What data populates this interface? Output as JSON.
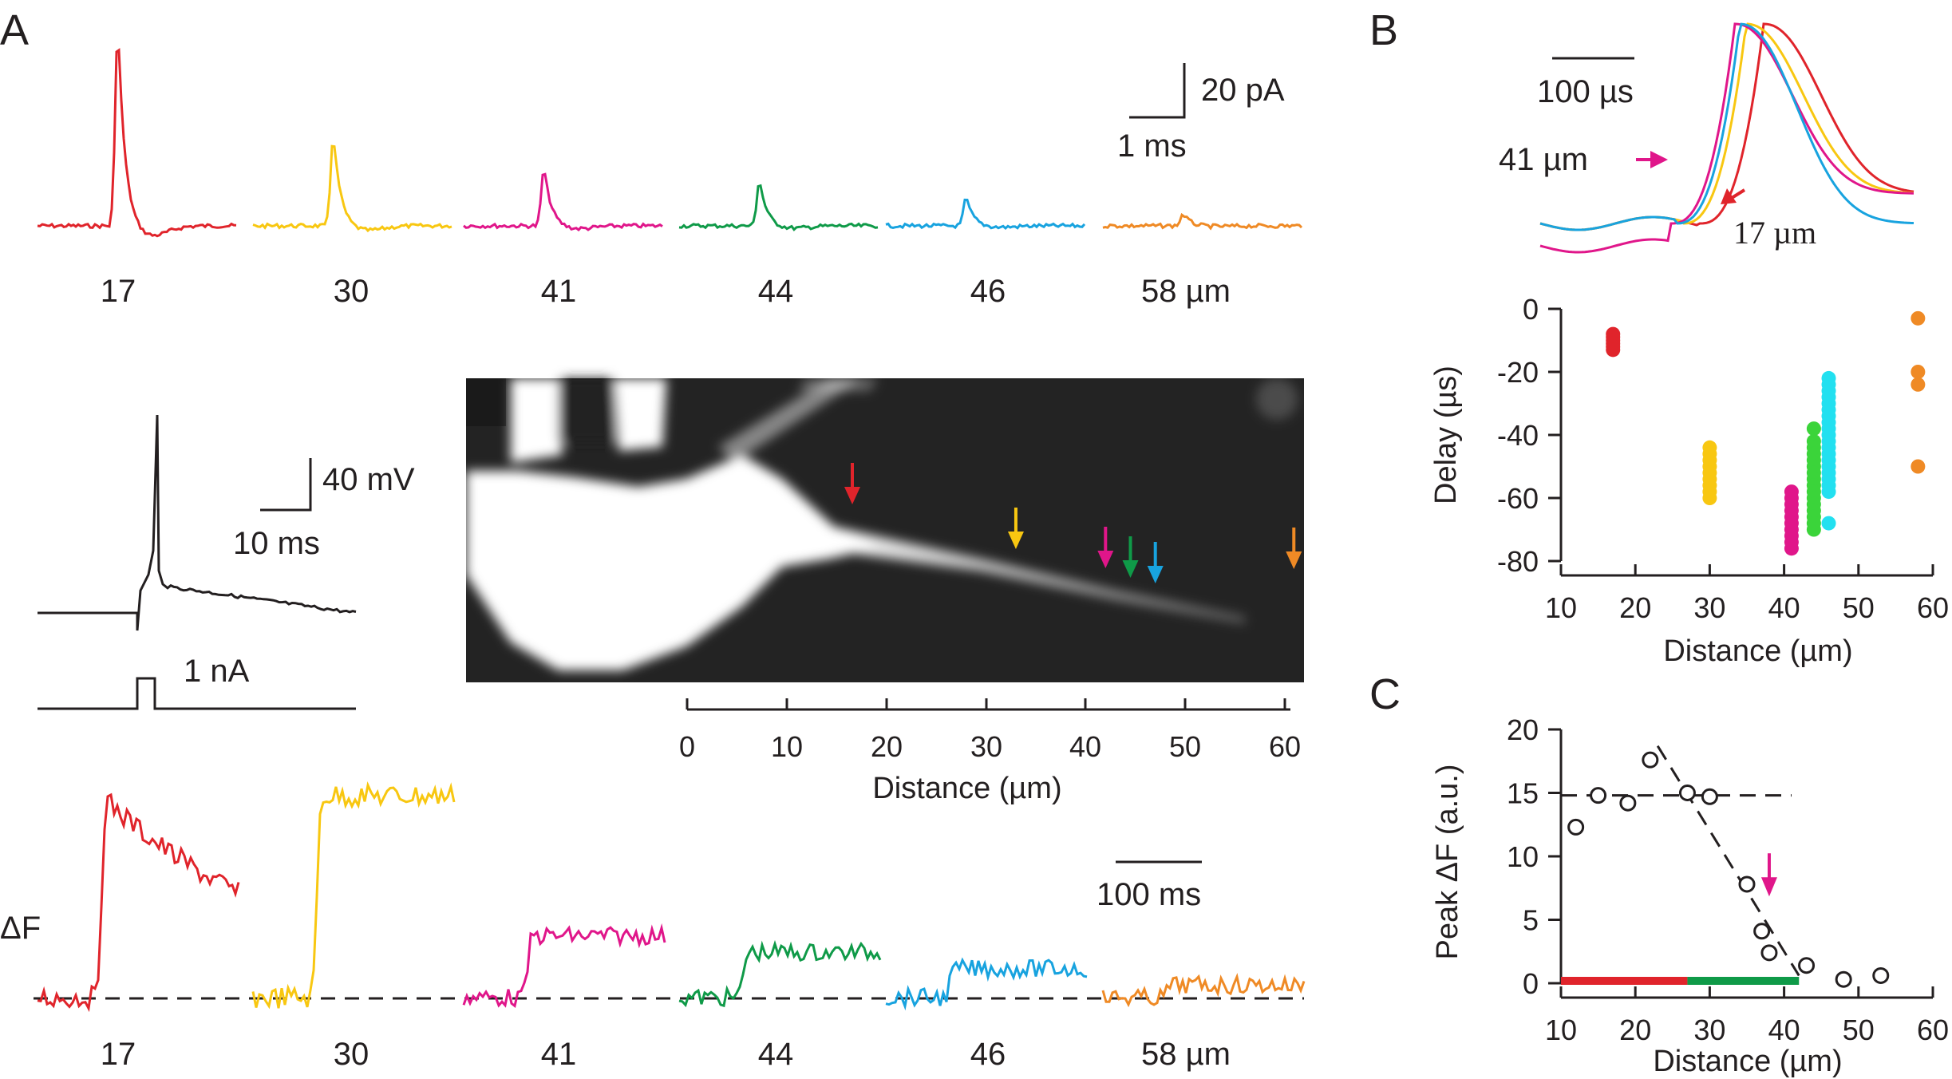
{
  "panels": {
    "a": "A",
    "b": "B",
    "c": "C"
  },
  "colors": {
    "red": "#e0242b",
    "yellow": "#f8c711",
    "magenta": "#e0168a",
    "green": "#0f9a48",
    "blue": "#18a3df",
    "orange": "#ef8a25",
    "cyan": "#22e0f0",
    "lightgreen": "#3bd43a",
    "black": "#231f20"
  },
  "panelA": {
    "current_labels": [
      "17",
      "30",
      "41",
      "44",
      "46",
      "58 µm"
    ],
    "current_peaks_rel": [
      1.0,
      0.46,
      0.29,
      0.23,
      0.14,
      0.06
    ],
    "scale_current": {
      "y": "20 pA",
      "x": "1 ms"
    },
    "ap_scale": {
      "y": "40 mV",
      "x": "10 ms"
    },
    "stim_label": "1 nA",
    "image_arrows_um": [
      17,
      33,
      42,
      44.5,
      47,
      58.5
    ],
    "distance_axis": {
      "ticks": [
        "0",
        "10",
        "20",
        "30",
        "40",
        "50",
        "60"
      ],
      "label": "Distance (µm)"
    },
    "dF_label": "ΔF",
    "dF_scale": "100 ms",
    "dF_labels": [
      "17",
      "30",
      "41",
      "44",
      "46",
      "58 µm"
    ],
    "dF_amplitudes_rel": [
      1.0,
      0.98,
      0.3,
      0.22,
      0.14,
      0.06
    ]
  },
  "panelB": {
    "scale": "100 µs",
    "label_41": "41 µm",
    "label_17": "17 µm",
    "chart_data": {
      "type": "scatter",
      "xlabel": "Distance (µm)",
      "ylabel": "Delay (µs)",
      "xlim": [
        10,
        60
      ],
      "ylim": [
        -80,
        0
      ],
      "xticks": [
        "10",
        "20",
        "30",
        "40",
        "50",
        "60"
      ],
      "yticks": [
        "0",
        "-20",
        "-40",
        "-60",
        "-80"
      ],
      "series": [
        {
          "color": "#e0242b",
          "x": [
            17,
            17,
            17,
            17,
            17,
            17
          ],
          "y": [
            -8,
            -9,
            -10,
            -11,
            -12,
            -13
          ]
        },
        {
          "color": "#f8c711",
          "x": [
            30,
            30,
            30,
            30,
            30,
            30,
            30,
            30,
            30
          ],
          "y": [
            -44,
            -46,
            -48,
            -50,
            -52,
            -54,
            -56,
            -58,
            -60
          ]
        },
        {
          "color": "#e0168a",
          "x": [
            41,
            41,
            41,
            41,
            41,
            41,
            41,
            41,
            41,
            41
          ],
          "y": [
            -58,
            -60,
            -62,
            -64,
            -66,
            -68,
            -70,
            -72,
            -74,
            -76
          ]
        },
        {
          "color": "#3bd43a",
          "x": [
            44,
            44,
            44,
            44,
            44,
            44,
            44,
            44,
            44,
            44,
            44,
            44,
            44,
            44,
            44,
            44
          ],
          "y": [
            -38,
            -42,
            -44,
            -46,
            -48,
            -50,
            -52,
            -54,
            -56,
            -58,
            -60,
            -62,
            -64,
            -66,
            -68,
            -70
          ]
        },
        {
          "color": "#22e0f0",
          "x": [
            46,
            46,
            46,
            46,
            46,
            46,
            46,
            46,
            46,
            46,
            46,
            46,
            46,
            46,
            46,
            46,
            46,
            46,
            46,
            46
          ],
          "y": [
            -22,
            -24,
            -26,
            -28,
            -30,
            -32,
            -34,
            -36,
            -38,
            -40,
            -42,
            -44,
            -46,
            -48,
            -50,
            -52,
            -54,
            -56,
            -58,
            -68
          ]
        },
        {
          "color": "#ef8a25",
          "x": [
            58,
            58,
            58,
            58
          ],
          "y": [
            -3,
            -20,
            -24,
            -50
          ]
        }
      ]
    }
  },
  "panelC": {
    "chart_data": {
      "type": "scatter",
      "xlabel": "Distance (µm)",
      "ylabel": "Peak ΔF (a.u.)",
      "xlim": [
        10,
        60
      ],
      "ylim": [
        0,
        20
      ],
      "xticks": [
        "10",
        "20",
        "30",
        "40",
        "50",
        "60"
      ],
      "yticks": [
        "0",
        "5",
        "10",
        "15",
        "20"
      ],
      "x": [
        12,
        15,
        19,
        22,
        27,
        30,
        35,
        37,
        38,
        43,
        48,
        53
      ],
      "y": [
        12.3,
        14.8,
        14.2,
        17.6,
        15.0,
        14.7,
        7.8,
        4.1,
        2.4,
        1.4,
        0.3,
        0.6
      ],
      "plateau_fit": {
        "x": [
          10,
          41
        ],
        "y": [
          14.8,
          14.8
        ]
      },
      "decline_fit": {
        "x": [
          23,
          42
        ],
        "y": [
          18.7,
          0.6
        ]
      },
      "arrow_at": [
        38,
        8.1
      ],
      "bar_red": [
        10,
        27
      ],
      "bar_green": [
        27,
        42
      ]
    }
  }
}
